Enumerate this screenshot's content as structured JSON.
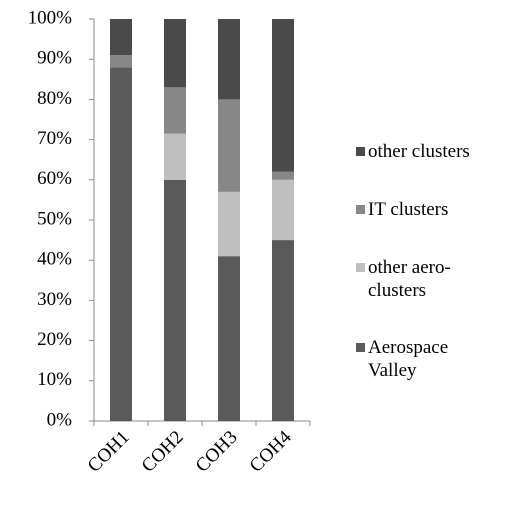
{
  "chart_data": {
    "type": "stacked_bar",
    "categories": [
      "COH1",
      "COH2",
      "COH3",
      "COH4"
    ],
    "series": [
      {
        "name": "Aerospace Valley",
        "color": "#5a5a5a",
        "values": [
          88,
          60,
          41,
          45
        ]
      },
      {
        "name": "other aero-clusters",
        "color": "#bfbfbf",
        "values": [
          0,
          11.5,
          16,
          15
        ]
      },
      {
        "name": "IT clusters",
        "color": "#878787",
        "values": [
          3,
          11.5,
          23,
          2
        ]
      },
      {
        "name": "other clusters",
        "color": "#4a4a4a",
        "values": [
          9,
          17,
          20,
          38
        ]
      }
    ],
    "ylim": [
      0,
      100
    ],
    "yticks": [
      {
        "value": 0,
        "label": "0%"
      },
      {
        "value": 10,
        "label": "10%"
      },
      {
        "value": 20,
        "label": "20%"
      },
      {
        "value": 30,
        "label": "30%"
      },
      {
        "value": 40,
        "label": "40%"
      },
      {
        "value": 50,
        "label": "50%"
      },
      {
        "value": 60,
        "label": "60%"
      },
      {
        "value": 70,
        "label": "70%"
      },
      {
        "value": 80,
        "label": "80%"
      },
      {
        "value": 90,
        "label": "90%"
      },
      {
        "value": 100,
        "label": "100%"
      }
    ],
    "legend": "right",
    "grid": false
  }
}
